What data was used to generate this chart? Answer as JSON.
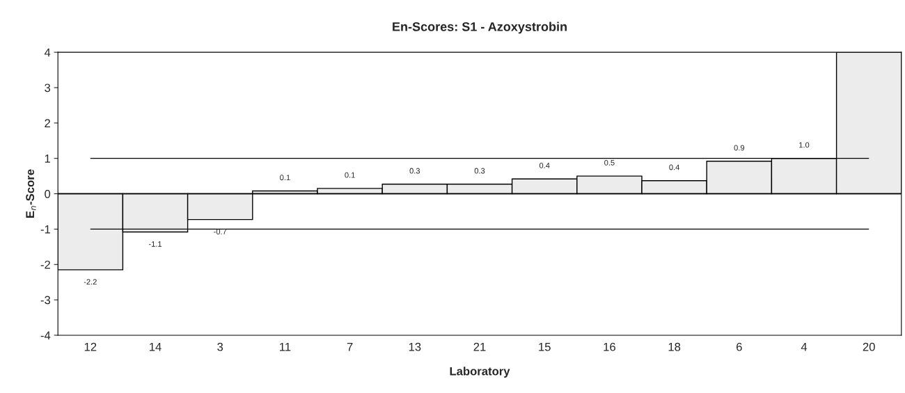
{
  "chart_data": {
    "type": "bar",
    "title": "En-Scores: S1 - Azoxystrobin",
    "xlabel": "Laboratory",
    "ylabel": "E$_{n}$-Score",
    "categories": [
      "12",
      "14",
      "3",
      "11",
      "7",
      "13",
      "21",
      "15",
      "16",
      "18",
      "6",
      "4",
      "20"
    ],
    "values": [
      -2.15,
      -1.08,
      -0.73,
      0.08,
      0.15,
      0.27,
      0.27,
      0.42,
      0.5,
      0.37,
      0.92,
      1.0,
      4
    ],
    "value_labels": [
      "-2.2",
      "-1.1",
      "-0.7",
      "0.1",
      "0.1",
      "0.3",
      "0.3",
      "0.4",
      "0.5",
      "0.4",
      "0.9",
      "1.0",
      null
    ],
    "color": "#ececec",
    "ylim": [
      -4,
      4
    ],
    "yticks": [
      -4,
      -3,
      -2,
      -1,
      0,
      1,
      2,
      3,
      4
    ],
    "grid": false,
    "legend": false,
    "ref_lines": [
      {
        "axis": "y",
        "value": 1,
        "color": "#000000"
      },
      {
        "axis": "y",
        "value": -1,
        "color": "#000000"
      }
    ]
  }
}
